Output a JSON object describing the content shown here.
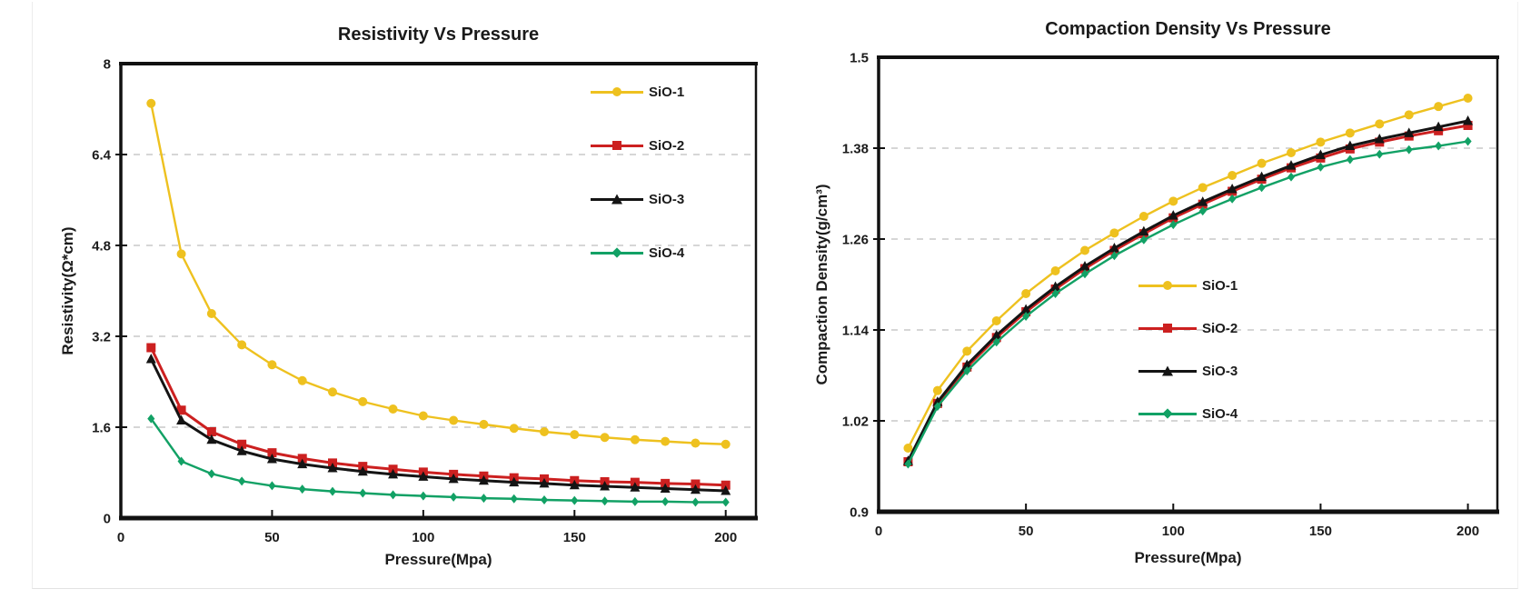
{
  "chart_data": [
    {
      "type": "line",
      "title": "Resistivity Vs Pressure",
      "xlabel": "Pressure(Mpa)",
      "ylabel": "Resistivity(Ω*cm)",
      "xlim": [
        0,
        210
      ],
      "ylim": [
        0,
        8
      ],
      "xticks": [
        0,
        50,
        100,
        150,
        200
      ],
      "yticks": [
        0,
        1.6,
        3.2,
        4.8,
        6.4,
        8
      ],
      "ytick_labels": [
        "0",
        "1.6",
        "3.2",
        "4.8",
        "6.4",
        "8"
      ],
      "grid": "horizontal-dashed",
      "legend_position": "top-right-inside",
      "x": [
        10,
        20,
        30,
        40,
        50,
        60,
        70,
        80,
        90,
        100,
        110,
        120,
        130,
        140,
        150,
        160,
        170,
        180,
        190,
        200
      ],
      "series": [
        {
          "name": "SiO-1",
          "color": "#EEC11F",
          "marker": "circle",
          "line_width": 2.4,
          "marker_size": 10,
          "values": [
            7.3,
            4.65,
            3.6,
            3.05,
            2.7,
            2.42,
            2.22,
            2.05,
            1.92,
            1.8,
            1.72,
            1.65,
            1.58,
            1.52,
            1.47,
            1.42,
            1.38,
            1.35,
            1.32,
            1.3
          ]
        },
        {
          "name": "SiO-2",
          "color": "#CC2020",
          "marker": "square",
          "line_width": 3.0,
          "marker_size": 10,
          "values": [
            3.0,
            1.9,
            1.52,
            1.3,
            1.15,
            1.05,
            0.97,
            0.91,
            0.86,
            0.81,
            0.77,
            0.74,
            0.71,
            0.69,
            0.66,
            0.64,
            0.63,
            0.61,
            0.6,
            0.58
          ]
        },
        {
          "name": "SiO-3",
          "color": "#141414",
          "marker": "triangle",
          "line_width": 3.0,
          "marker_size": 10,
          "values": [
            2.8,
            1.72,
            1.38,
            1.18,
            1.04,
            0.95,
            0.88,
            0.82,
            0.77,
            0.73,
            0.69,
            0.66,
            0.63,
            0.61,
            0.58,
            0.56,
            0.54,
            0.52,
            0.5,
            0.48
          ]
        },
        {
          "name": "SiO-4",
          "color": "#12A165",
          "marker": "diamond",
          "line_width": 2.4,
          "marker_size": 9,
          "values": [
            1.75,
            1.0,
            0.78,
            0.65,
            0.57,
            0.51,
            0.47,
            0.44,
            0.41,
            0.39,
            0.37,
            0.35,
            0.34,
            0.32,
            0.31,
            0.3,
            0.29,
            0.29,
            0.28,
            0.28
          ]
        }
      ]
    },
    {
      "type": "line",
      "title": "Compaction Density Vs Pressure",
      "xlabel": "Pressure(Mpa)",
      "ylabel": "Compaction Density(g/cm³)",
      "xlim": [
        0,
        210
      ],
      "ylim": [
        0.9,
        1.5
      ],
      "xticks": [
        0,
        50,
        100,
        150,
        200
      ],
      "yticks": [
        0.9,
        1.02,
        1.14,
        1.26,
        1.38,
        1.5
      ],
      "ytick_labels": [
        "0.9",
        "1.02",
        "1.14",
        "1.26",
        "1.38",
        "1.5"
      ],
      "grid": "horizontal-dashed",
      "legend_position": "right-inside",
      "x": [
        10,
        20,
        30,
        40,
        50,
        60,
        70,
        80,
        90,
        100,
        110,
        120,
        130,
        140,
        150,
        160,
        170,
        180,
        190,
        200
      ],
      "series": [
        {
          "name": "SiO-1",
          "color": "#EEC11F",
          "marker": "circle",
          "line_width": 2.4,
          "marker_size": 10,
          "values": [
            0.984,
            1.06,
            1.112,
            1.152,
            1.188,
            1.218,
            1.245,
            1.268,
            1.29,
            1.31,
            1.328,
            1.344,
            1.36,
            1.374,
            1.388,
            1.4,
            1.412,
            1.424,
            1.435,
            1.446
          ]
        },
        {
          "name": "SiO-2",
          "color": "#CC2020",
          "marker": "square",
          "line_width": 3.0,
          "marker_size": 10,
          "values": [
            0.966,
            1.043,
            1.091,
            1.13,
            1.164,
            1.194,
            1.221,
            1.245,
            1.267,
            1.288,
            1.306,
            1.323,
            1.339,
            1.354,
            1.367,
            1.379,
            1.388,
            1.396,
            1.403,
            1.41
          ]
        },
        {
          "name": "SiO-3",
          "color": "#141414",
          "marker": "triangle",
          "line_width": 3.0,
          "marker_size": 10,
          "values": [
            0.967,
            1.045,
            1.094,
            1.133,
            1.167,
            1.197,
            1.224,
            1.248,
            1.27,
            1.291,
            1.309,
            1.326,
            1.342,
            1.357,
            1.371,
            1.383,
            1.392,
            1.4,
            1.408,
            1.416
          ]
        },
        {
          "name": "SiO-4",
          "color": "#12A165",
          "marker": "diamond",
          "line_width": 2.4,
          "marker_size": 9,
          "values": [
            0.963,
            1.039,
            1.086,
            1.124,
            1.158,
            1.188,
            1.214,
            1.238,
            1.259,
            1.279,
            1.297,
            1.313,
            1.328,
            1.342,
            1.355,
            1.365,
            1.372,
            1.378,
            1.383,
            1.389
          ]
        }
      ]
    }
  ]
}
